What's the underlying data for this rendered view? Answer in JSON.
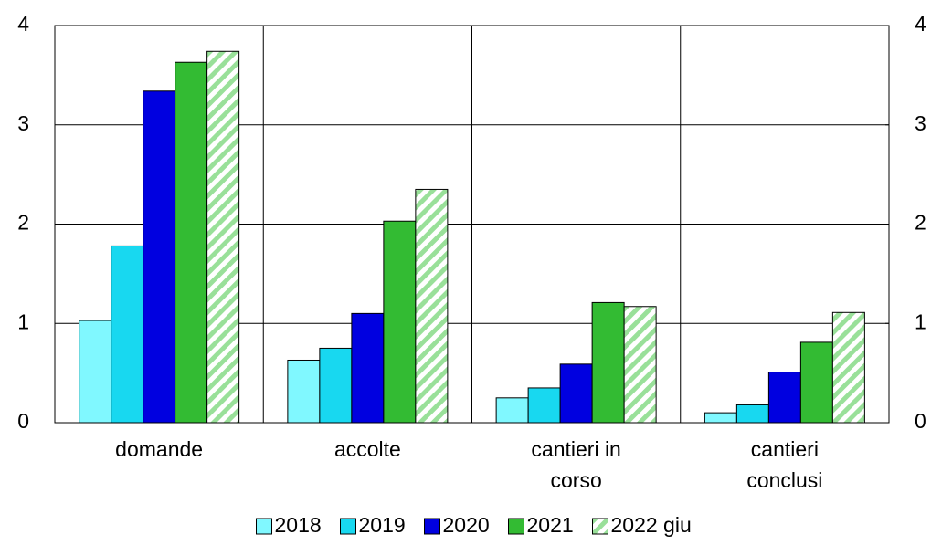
{
  "chart_data": {
    "type": "bar",
    "categories": [
      "domande",
      "accolte",
      "cantieri in\ncorso",
      "cantieri\nconclusi"
    ],
    "series": [
      {
        "name": "2018",
        "color": "#80f8ff",
        "values": [
          1.03,
          0.63,
          0.25,
          0.1
        ]
      },
      {
        "name": "2019",
        "color": "#18d8f0",
        "values": [
          1.78,
          0.75,
          0.35,
          0.18
        ]
      },
      {
        "name": "2020",
        "color": "#0000e0",
        "values": [
          3.34,
          1.1,
          0.59,
          0.51
        ]
      },
      {
        "name": "2021",
        "color": "#33bb33",
        "values": [
          3.63,
          2.03,
          1.21,
          0.81
        ]
      },
      {
        "name": "2022 giu",
        "color": "#99e099",
        "pattern": "hatch",
        "values": [
          3.74,
          2.35,
          1.17,
          1.11
        ]
      }
    ],
    "ylim": [
      0,
      4
    ],
    "yticks": [
      0,
      1,
      2,
      3,
      4
    ],
    "y2lim": [
      0,
      4
    ],
    "y2ticks": [
      0,
      1,
      2,
      3,
      4
    ],
    "grid": true,
    "legend": "bottom"
  }
}
